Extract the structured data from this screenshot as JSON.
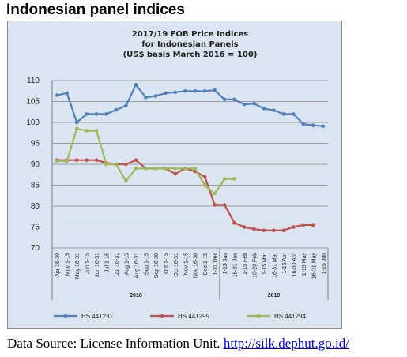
{
  "heading": "Indonesian panel indices",
  "source": {
    "label": "Data Source: License Information Unit.",
    "link_text": "http://silk.dephut.go.id/"
  },
  "chart_data": {
    "type": "line",
    "title_lines": [
      "2017/19 FOB Price Indices",
      "for Indonesian Panels",
      "(US$ basis March 2016 = 100)"
    ],
    "categories": [
      "Apr 16-30",
      "May 1-15",
      "May 16-31",
      "Jun 1-15",
      "Jun 16-31",
      "Jul 1-15",
      "Jul 16-31",
      "Aug 1-15",
      "Aug 16-31",
      "Sep 1-15",
      "Sep 16-30",
      "Oct 1-15",
      "Oct 16-31",
      "Nov 1-15",
      "Nov 16-30",
      "Dec 1-15",
      "1-31 Dec",
      "1-15 Jan",
      "16-31 Jan",
      "1-15 Feb",
      "16-28 Feb",
      "1-15 Mar",
      "16-31 Mar",
      "1-15 Apr",
      "16-30 Apr",
      "1-15 May",
      "16-31 May",
      "1-15 Jun"
    ],
    "year_labels": [
      {
        "label": "2018",
        "from": 0,
        "to": 16
      },
      {
        "label": "2019",
        "from": 17,
        "to": 27
      }
    ],
    "series": [
      {
        "name": "HS 441231",
        "color": "#4f81bd",
        "values": [
          106.5,
          107,
          100,
          102,
          102,
          102,
          103,
          104,
          109,
          106,
          106.3,
          107,
          107.2,
          107.5,
          107.5,
          107.5,
          107.7,
          105.5,
          105.5,
          104.3,
          104.5,
          103.3,
          102.9,
          102,
          102,
          99.6,
          99.3,
          99.1
        ]
      },
      {
        "name": "HS 441299",
        "color": "#c0504d",
        "values": [
          91,
          91,
          91,
          91,
          91,
          90.3,
          90,
          90,
          91,
          89,
          89,
          89,
          87.7,
          89,
          88.3,
          87,
          80.3,
          80.3,
          76,
          75,
          74.5,
          74.2,
          74.2,
          74.2,
          75,
          75.5,
          75.5,
          null
        ]
      },
      {
        "name": "HS 441294",
        "color": "#9bbb59",
        "values": [
          90.8,
          90.8,
          98.5,
          98,
          98,
          90,
          90,
          86,
          89,
          89,
          89,
          89,
          89,
          89,
          89,
          85,
          83,
          86.5,
          86.5,
          null,
          null,
          null,
          null,
          null,
          null,
          null,
          null,
          null
        ]
      }
    ],
    "y_axis": {
      "ticks": [
        70,
        75,
        80,
        85,
        90,
        95,
        100,
        105,
        110
      ],
      "tick_labels": [
        "70",
        "75",
        "80",
        "85",
        "90",
        "95",
        "100",
        "105",
        "110"
      ],
      "ylim": [
        70,
        110
      ]
    },
    "grid": "horizontal",
    "legend_position": "bottom"
  }
}
